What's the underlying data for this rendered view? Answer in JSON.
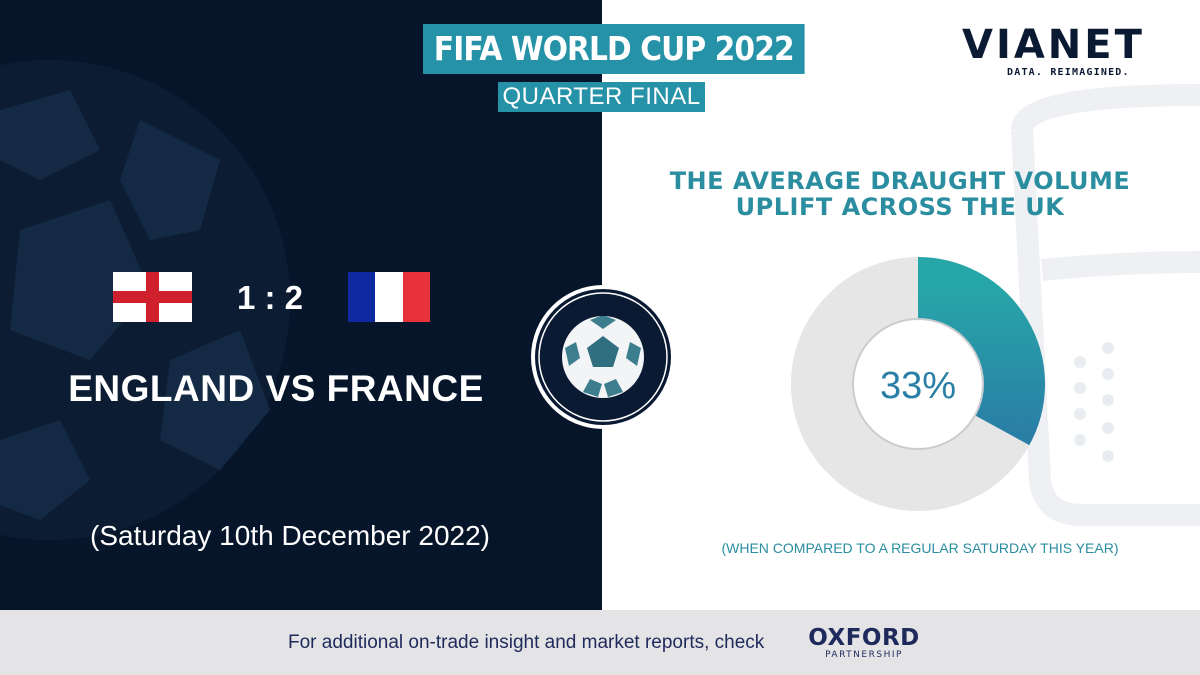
{
  "header": {
    "title": "FIFA WORLD CUP 2022",
    "subtitle": "QUARTER FINAL"
  },
  "logo": {
    "name": "VIANET",
    "tagline": "DATA. REIMAGINED."
  },
  "match": {
    "home_flag": "england-flag",
    "away_flag": "france-flag",
    "score": "1 : 2",
    "title": "ENGLAND VS FRANCE",
    "date": "(Saturday 10th December 2022)"
  },
  "stat": {
    "headline_line1": "THE AVERAGE DRAUGHT VOLUME",
    "headline_line2": "UPLIFT ACROSS THE UK",
    "value": 33,
    "value_label": "33%",
    "footnote": "(WHEN COMPARED TO A REGULAR SATURDAY THIS  YEAR)"
  },
  "footer": {
    "text": "For additional on-trade insight and market reports, check",
    "partner_name": "OXFORD",
    "partner_sub": "PARTNERSHIP"
  },
  "colors": {
    "navy": "#06152a",
    "teal": "#2592a8",
    "teal_light": "#27a6a8",
    "teal_dark": "#2a7fa6",
    "donut_track": "#e6e6e6",
    "footer_bg": "#e4e4e6",
    "eng_red": "#d0202d",
    "fra_blue": "#0f2aa0",
    "fra_white": "#ffffff",
    "fra_red": "#e8323b"
  },
  "icons": {
    "background_left": "soccer-ball-watermark",
    "background_right": "beer-glass-watermark",
    "center": "soccer-ball-icon"
  }
}
